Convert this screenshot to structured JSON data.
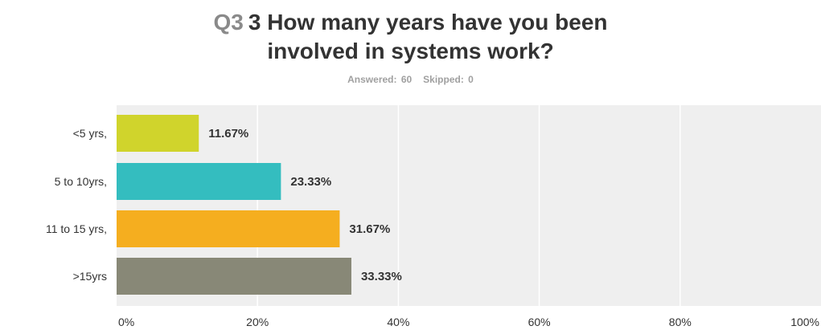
{
  "title": {
    "question_number": "Q3",
    "line1": "3 How many years have you been",
    "line2": "involved in systems work?"
  },
  "summary": {
    "answered": "Answered: 60",
    "skipped": "Skipped: 0"
  },
  "colors": {
    "plot_background": "#efefef",
    "gridline": "#ffffff",
    "bars": [
      "#d0d42c",
      "#34bdbf",
      "#f5ae1f",
      "#888877"
    ]
  },
  "chart_data": {
    "type": "bar",
    "orientation": "horizontal",
    "categories": [
      "<5 yrs,",
      "5 to 10yrs,",
      "11 to 15 yrs,",
      ">15yrs"
    ],
    "values": [
      11.67,
      23.33,
      31.67,
      33.33
    ],
    "value_labels": [
      "11.67%",
      "23.33%",
      "31.67%",
      "33.33%"
    ],
    "xlim": [
      0,
      100
    ],
    "x_ticks": [
      0,
      20,
      40,
      60,
      80,
      100
    ],
    "x_tick_labels": [
      "0%",
      "20%",
      "40%",
      "60%",
      "80%",
      "100%"
    ],
    "grid": true,
    "legend": "none"
  }
}
